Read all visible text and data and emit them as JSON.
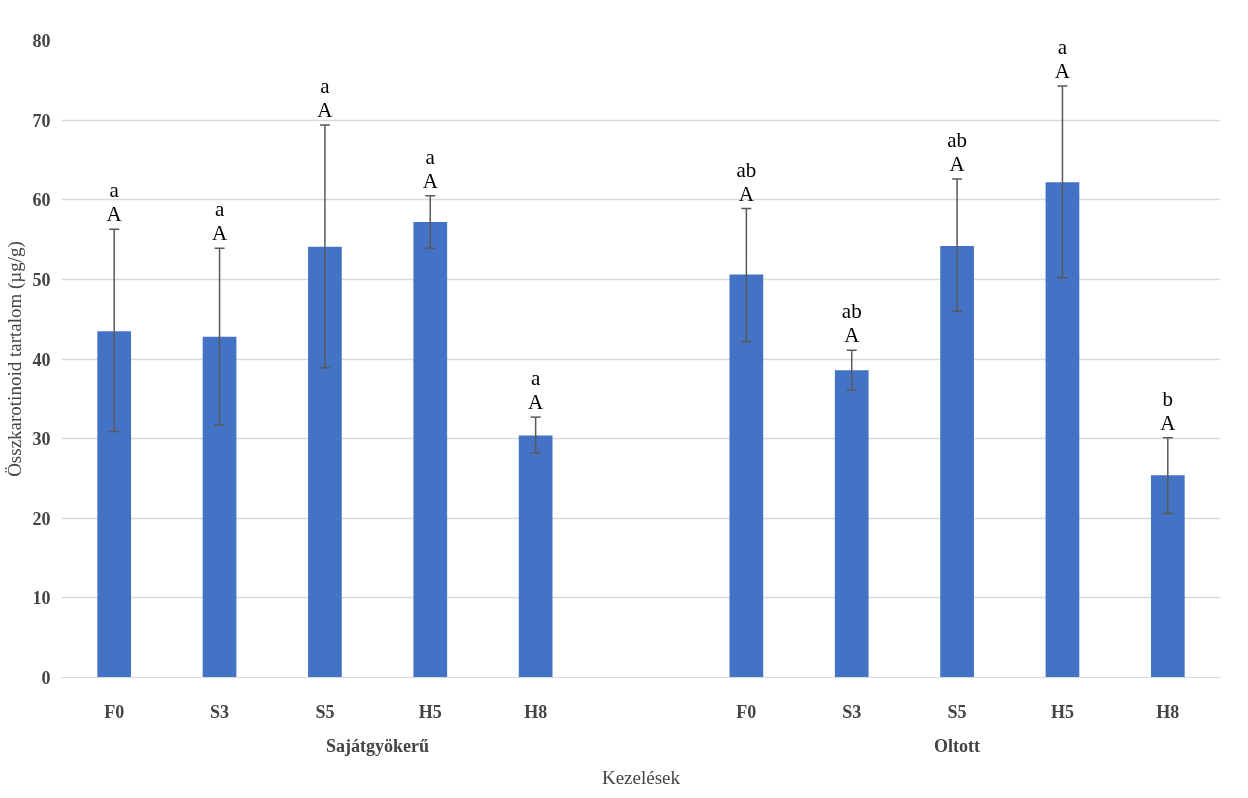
{
  "chart_data": {
    "type": "bar",
    "categories": [
      "F0",
      "S3",
      "S5",
      "H5",
      "H8",
      null,
      "F0",
      "S3",
      "S5",
      "H5",
      "H8"
    ],
    "values": [
      43.5,
      42.8,
      54.1,
      57.2,
      30.4,
      null,
      50.6,
      38.6,
      54.2,
      62.2,
      25.4
    ],
    "errors": [
      [
        30.9,
        56.3
      ],
      [
        31.7,
        53.9
      ],
      [
        38.9,
        69.4
      ],
      [
        53.9,
        60.5
      ],
      [
        28.2,
        32.7
      ],
      null,
      [
        42.2,
        58.9
      ],
      [
        36.1,
        41.1
      ],
      [
        46.0,
        62.6
      ],
      [
        50.2,
        74.3
      ],
      [
        20.6,
        30.1
      ]
    ],
    "color": "#4472c4",
    "ylabel": "Összkarotinoid tartalom (µg/g)",
    "xlabel": "Kezelések",
    "annotations": [
      "Sajátgyökerű",
      "Oltott",
      "a\nA",
      "a\nA",
      "a\nA",
      "a\nA",
      "a\nA",
      "ab\nA",
      "ab\nA",
      "ab\nA",
      "a\nA",
      "b\nA"
    ],
    "ylim": [
      0,
      80
    ],
    "yticks": [
      0,
      10,
      20,
      30,
      40,
      50,
      60,
      70,
      80
    ],
    "grid": "y"
  }
}
